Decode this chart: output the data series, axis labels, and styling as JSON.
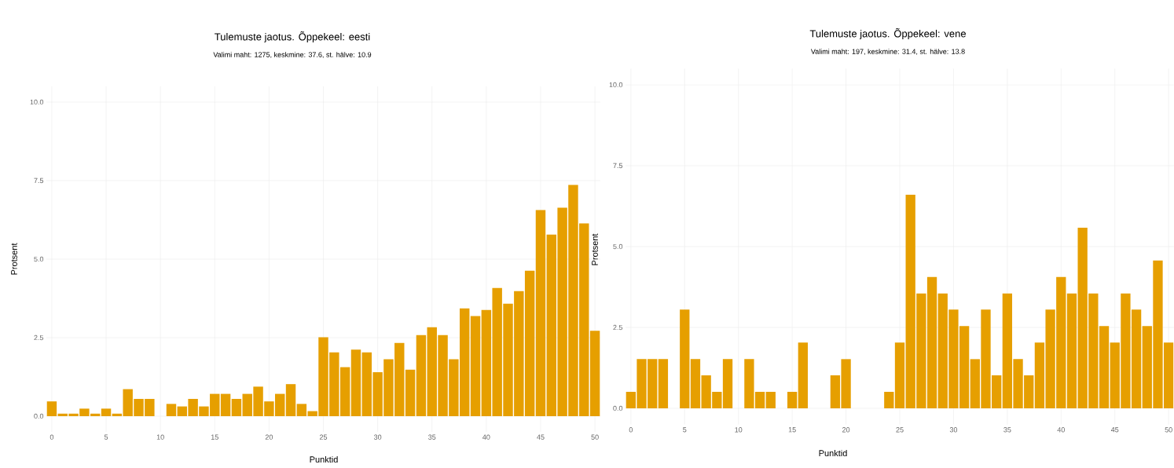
{
  "chart_data": [
    {
      "type": "bar",
      "title": "Tulemuste jaotus. Õppekeel: eesti",
      "subtitle": "Valimi maht: 1275, keskmine: 37.6, st. hälve: 10.9",
      "xlabel": "Punktid",
      "ylabel": "Protsent",
      "x": [
        0,
        1,
        2,
        3,
        4,
        5,
        6,
        7,
        8,
        9,
        10,
        11,
        12,
        13,
        14,
        15,
        16,
        17,
        18,
        19,
        20,
        21,
        22,
        23,
        24,
        25,
        26,
        27,
        28,
        29,
        30,
        31,
        32,
        33,
        34,
        35,
        36,
        37,
        38,
        39,
        40,
        41,
        42,
        43,
        44,
        45,
        46,
        47,
        48,
        49,
        50
      ],
      "values": [
        0.47,
        0.08,
        0.08,
        0.24,
        0.08,
        0.24,
        0.08,
        0.86,
        0.55,
        0.55,
        0,
        0.39,
        0.31,
        0.55,
        0.31,
        0.71,
        0.71,
        0.55,
        0.71,
        0.94,
        0.47,
        0.71,
        1.02,
        0.39,
        0.16,
        2.51,
        2.03,
        1.56,
        2.12,
        2.03,
        1.4,
        1.81,
        2.33,
        1.48,
        2.58,
        2.83,
        2.58,
        1.81,
        3.43,
        3.19,
        3.38,
        4.08,
        3.58,
        3.98,
        4.63,
        6.56,
        5.78,
        6.64,
        7.36,
        6.14,
        2.72
      ],
      "color": "#e69f00",
      "xlim": [
        -0.5,
        50.5
      ],
      "xticks": [
        0,
        5,
        10,
        15,
        20,
        25,
        30,
        35,
        40,
        45,
        50
      ],
      "ylim": [
        -0.5,
        10.5
      ],
      "yticks": [
        {
          "value": 0,
          "label": "0.0"
        },
        {
          "value": 2.5,
          "label": "2.5"
        },
        {
          "value": 5,
          "label": "5.0"
        },
        {
          "value": 7.5,
          "label": "7.5"
        },
        {
          "value": 10,
          "label": "10.0"
        }
      ],
      "grid": true
    },
    {
      "type": "bar",
      "title": "Tulemuste jaotus. Õppekeel: vene",
      "subtitle": "Valimi maht: 197, keskmine: 31.4, st. hälve: 13.8",
      "xlabel": "Punktid",
      "ylabel": "Protsent",
      "x": [
        0,
        1,
        2,
        3,
        4,
        5,
        6,
        7,
        8,
        9,
        10,
        11,
        12,
        13,
        14,
        15,
        16,
        17,
        18,
        19,
        20,
        21,
        22,
        23,
        24,
        25,
        26,
        27,
        28,
        29,
        30,
        31,
        32,
        33,
        34,
        35,
        36,
        37,
        38,
        39,
        40,
        41,
        42,
        43,
        44,
        45,
        46,
        47,
        48,
        49,
        50
      ],
      "values": [
        0.51,
        1.52,
        1.52,
        1.52,
        0,
        3.05,
        1.52,
        1.02,
        0.51,
        1.52,
        0,
        1.52,
        0.51,
        0.51,
        0,
        0.51,
        2.03,
        0,
        0,
        1.02,
        1.52,
        0,
        0,
        0,
        0.51,
        2.03,
        6.6,
        3.55,
        4.06,
        3.55,
        3.05,
        2.54,
        1.52,
        3.05,
        1.02,
        3.55,
        1.52,
        1.02,
        2.03,
        3.05,
        4.06,
        3.55,
        5.58,
        3.55,
        2.54,
        2.03,
        3.55,
        3.05,
        2.54,
        4.57,
        2.03
      ],
      "color": "#e69f00",
      "xlim": [
        -0.5,
        50.5
      ],
      "xticks": [
        0,
        5,
        10,
        15,
        20,
        25,
        30,
        35,
        40,
        45,
        50
      ],
      "ylim": [
        -0.5,
        10.5
      ],
      "yticks": [
        {
          "value": 0,
          "label": "0.0"
        },
        {
          "value": 2.5,
          "label": "2.5"
        },
        {
          "value": 5,
          "label": "5.0"
        },
        {
          "value": 7.5,
          "label": "7.5"
        },
        {
          "value": 10,
          "label": "10.0"
        }
      ],
      "grid": true
    }
  ]
}
